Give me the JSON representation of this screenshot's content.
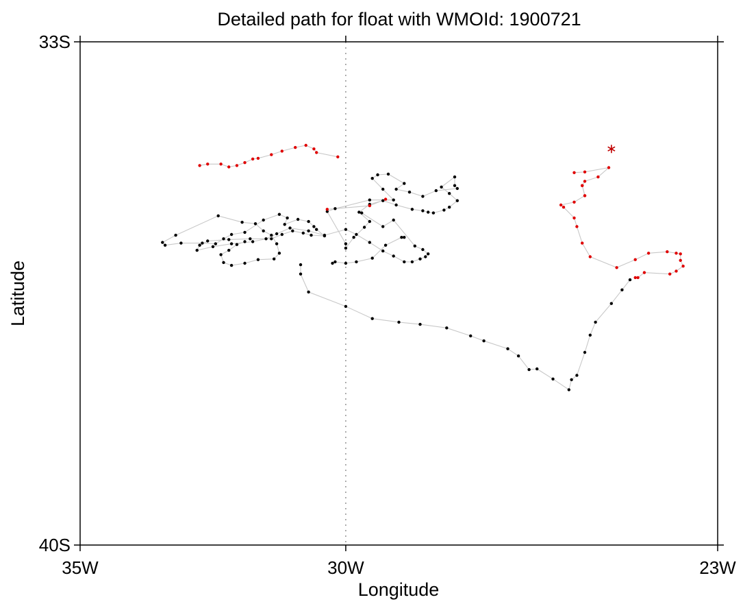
{
  "chart_data": {
    "type": "scatter",
    "title": "Detailed path for float with WMOId: 1900721",
    "xlabel": "Longitude",
    "ylabel": "Latitude",
    "xlim": [
      -35,
      -23
    ],
    "ylim": [
      -40,
      -33
    ],
    "x_ticks": [
      {
        "value": -35,
        "label": "35W"
      },
      {
        "value": -30,
        "label": "30W"
      },
      {
        "value": -23,
        "label": "23W"
      }
    ],
    "y_ticks": [
      {
        "value": -33,
        "label": "33S"
      },
      {
        "value": -40,
        "label": "40S"
      }
    ],
    "reference_line": {
      "lon": -30,
      "style": "dotted"
    },
    "grid": false,
    "path_color": "#c8c8c8",
    "colors": {
      "early": "#000000",
      "recent": "#e00000",
      "last_position": "#c00000"
    },
    "series": [
      {
        "color": "#000000",
        "points": [
          [
            -29.7,
            -35.38
          ],
          [
            -29.3,
            -35.57
          ],
          [
            -29.1,
            -35.48
          ],
          [
            -28.7,
            -35.84
          ],
          [
            -28.55,
            -35.89
          ],
          [
            -28.45,
            -35.95
          ],
          [
            -28.5,
            -35.99
          ],
          [
            -28.6,
            -36.02
          ],
          [
            -28.75,
            -36.06
          ],
          [
            -28.9,
            -36.06
          ],
          [
            -29.1,
            -35.98
          ],
          [
            -29.3,
            -35.91
          ],
          [
            -29.55,
            -35.79
          ],
          [
            -29.8,
            -35.68
          ],
          [
            -30.0,
            -35.61
          ],
          [
            -30.4,
            -35.69
          ],
          [
            -30.7,
            -35.63
          ],
          [
            -31.05,
            -35.59
          ],
          [
            -31.3,
            -35.67
          ],
          [
            -31.5,
            -35.74
          ],
          [
            -31.75,
            -35.78
          ],
          [
            -32.15,
            -35.81
          ],
          [
            -32.5,
            -35.85
          ],
          [
            -32.8,
            -35.9
          ],
          [
            -32.75,
            -35.83
          ],
          [
            -32.6,
            -35.77
          ],
          [
            -32.2,
            -35.75
          ],
          [
            -31.8,
            -35.74
          ],
          [
            -31.4,
            -35.74
          ],
          [
            -31.2,
            -35.68
          ],
          [
            -31.0,
            -35.63
          ],
          [
            -30.8,
            -35.66
          ],
          [
            -30.65,
            -35.69
          ],
          [
            -30.4,
            -35.7
          ],
          [
            -30.55,
            -35.61
          ],
          [
            -30.6,
            -35.57
          ],
          [
            -30.7,
            -35.5
          ],
          [
            -30.9,
            -35.47
          ],
          [
            -31.15,
            -35.54
          ],
          [
            -31.1,
            -35.45
          ],
          [
            -31.25,
            -35.4
          ],
          [
            -31.55,
            -35.48
          ],
          [
            -31.9,
            -35.65
          ],
          [
            -32.15,
            -35.68
          ],
          [
            -32.3,
            -35.74
          ],
          [
            -32.45,
            -35.81
          ],
          [
            -32.7,
            -35.8
          ],
          [
            -33.1,
            -35.8
          ],
          [
            -33.4,
            -35.83
          ],
          [
            -33.45,
            -35.79
          ],
          [
            -33.2,
            -35.69
          ],
          [
            -32.4,
            -35.42
          ],
          [
            -31.95,
            -35.51
          ],
          [
            -31.7,
            -35.53
          ],
          [
            -31.55,
            -35.63
          ],
          [
            -31.4,
            -35.69
          ],
          [
            -31.3,
            -35.81
          ],
          [
            -31.25,
            -35.94
          ],
          [
            -31.35,
            -36.02
          ],
          [
            -31.65,
            -36.03
          ],
          [
            -31.9,
            -36.08
          ],
          [
            -32.15,
            -36.11
          ],
          [
            -32.3,
            -36.07
          ],
          [
            -32.35,
            -35.96
          ],
          [
            -32.2,
            -35.9
          ],
          [
            -32.05,
            -35.82
          ],
          [
            -31.9,
            -35.78
          ]
        ]
      },
      {
        "color": "#000000",
        "points": [
          [
            -30.0,
            -35.87
          ],
          [
            -29.85,
            -35.72
          ],
          [
            -29.65,
            -35.58
          ],
          [
            -29.55,
            -35.5
          ],
          [
            -29.75,
            -35.37
          ],
          [
            -29.55,
            -35.26
          ],
          [
            -29.3,
            -35.21
          ],
          [
            -29.05,
            -35.27
          ],
          [
            -28.75,
            -35.33
          ],
          [
            -28.55,
            -35.35
          ],
          [
            -28.45,
            -35.37
          ],
          [
            -28.35,
            -35.38
          ],
          [
            -28.15,
            -35.34
          ],
          [
            -28.05,
            -35.3
          ],
          [
            -27.9,
            -35.21
          ],
          [
            -28.05,
            -35.11
          ],
          [
            -28.2,
            -35.02
          ],
          [
            -27.95,
            -34.88
          ],
          [
            -27.95,
            -35.0
          ],
          [
            -27.9,
            -35.04
          ],
          [
            -28.3,
            -35.07
          ],
          [
            -28.55,
            -35.15
          ],
          [
            -28.8,
            -35.09
          ],
          [
            -29.05,
            -35.05
          ],
          [
            -28.9,
            -34.97
          ],
          [
            -29.2,
            -34.84
          ],
          [
            -29.4,
            -34.85
          ],
          [
            -29.5,
            -34.9
          ],
          [
            -29.3,
            -35.05
          ],
          [
            -29.1,
            -35.2
          ],
          [
            -29.55,
            -35.2
          ],
          [
            -30.2,
            -35.32
          ],
          [
            -30.35,
            -35.36
          ],
          [
            -30.0,
            -35.81
          ]
        ]
      },
      {
        "color": "#000000",
        "points": [
          [
            -30.25,
            -36.08
          ],
          [
            -30.2,
            -36.06
          ],
          [
            -30.0,
            -36.08
          ],
          [
            -29.8,
            -36.06
          ],
          [
            -29.5,
            -36.01
          ],
          [
            -29.25,
            -35.83
          ],
          [
            -28.95,
            -35.72
          ],
          [
            -28.9,
            -35.72
          ]
        ]
      },
      {
        "color": "#000000",
        "points": [
          [
            -30.85,
            -36.1
          ],
          [
            -30.85,
            -36.23
          ],
          [
            -30.7,
            -36.48
          ],
          [
            -30.0,
            -36.68
          ],
          [
            -29.5,
            -36.85
          ],
          [
            -29.0,
            -36.9
          ],
          [
            -28.6,
            -36.93
          ],
          [
            -28.1,
            -36.98
          ],
          [
            -27.65,
            -37.09
          ],
          [
            -27.4,
            -37.16
          ],
          [
            -26.95,
            -37.27
          ],
          [
            -26.75,
            -37.37
          ],
          [
            -26.55,
            -37.56
          ],
          [
            -26.4,
            -37.55
          ],
          [
            -26.1,
            -37.69
          ],
          [
            -25.8,
            -37.84
          ],
          [
            -25.75,
            -37.7
          ],
          [
            -25.65,
            -37.64
          ],
          [
            -25.5,
            -37.32
          ],
          [
            -25.4,
            -37.08
          ],
          [
            -25.3,
            -36.9
          ],
          [
            -25.0,
            -36.64
          ],
          [
            -24.8,
            -36.45
          ],
          [
            -24.65,
            -36.31
          ]
        ]
      },
      {
        "color": "#e00000",
        "points": [
          [
            -24.55,
            -36.28
          ],
          [
            -24.5,
            -36.28
          ],
          [
            -24.38,
            -36.21
          ],
          [
            -23.9,
            -36.23
          ],
          [
            -23.78,
            -36.19
          ],
          [
            -23.65,
            -36.12
          ],
          [
            -23.7,
            -36.04
          ],
          [
            -23.7,
            -35.95
          ],
          [
            -23.78,
            -35.94
          ],
          [
            -23.95,
            -35.92
          ],
          [
            -24.3,
            -35.94
          ],
          [
            -24.55,
            -36.03
          ],
          [
            -24.9,
            -36.14
          ],
          [
            -25.4,
            -35.99
          ],
          [
            -25.55,
            -35.8
          ],
          [
            -25.65,
            -35.57
          ],
          [
            -25.7,
            -35.45
          ],
          [
            -25.9,
            -35.3
          ],
          [
            -25.95,
            -35.27
          ],
          [
            -25.7,
            -35.23
          ],
          [
            -25.5,
            -35.14
          ],
          [
            -25.55,
            -35.0
          ],
          [
            -25.5,
            -34.94
          ],
          [
            -25.25,
            -34.88
          ],
          [
            -25.05,
            -34.75
          ],
          [
            -25.5,
            -34.81
          ],
          [
            -25.7,
            -34.82
          ]
        ]
      },
      {
        "color": "#e00000",
        "points": [
          [
            -32.75,
            -34.72
          ],
          [
            -32.6,
            -34.7
          ],
          [
            -32.35,
            -34.7
          ],
          [
            -32.2,
            -34.74
          ],
          [
            -32.05,
            -34.72
          ],
          [
            -31.9,
            -34.68
          ],
          [
            -31.75,
            -34.63
          ],
          [
            -31.65,
            -34.62
          ],
          [
            -31.4,
            -34.57
          ],
          [
            -31.2,
            -34.52
          ],
          [
            -30.95,
            -34.47
          ],
          [
            -30.75,
            -34.44
          ],
          [
            -30.6,
            -34.49
          ],
          [
            -30.55,
            -34.54
          ],
          [
            -30.15,
            -34.6
          ]
        ]
      },
      {
        "color": "#e00000",
        "points": [
          [
            -25.5,
            -35.14
          ],
          [
            -25.55,
            -35.0
          ]
        ]
      },
      {
        "color": "#e00000",
        "points": [
          [
            -30.35,
            -35.33
          ],
          [
            -29.55,
            -35.28
          ],
          [
            -29.25,
            -35.19
          ]
        ]
      }
    ],
    "last_position": {
      "lon": -25.0,
      "lat": -34.49,
      "marker": "*"
    }
  }
}
